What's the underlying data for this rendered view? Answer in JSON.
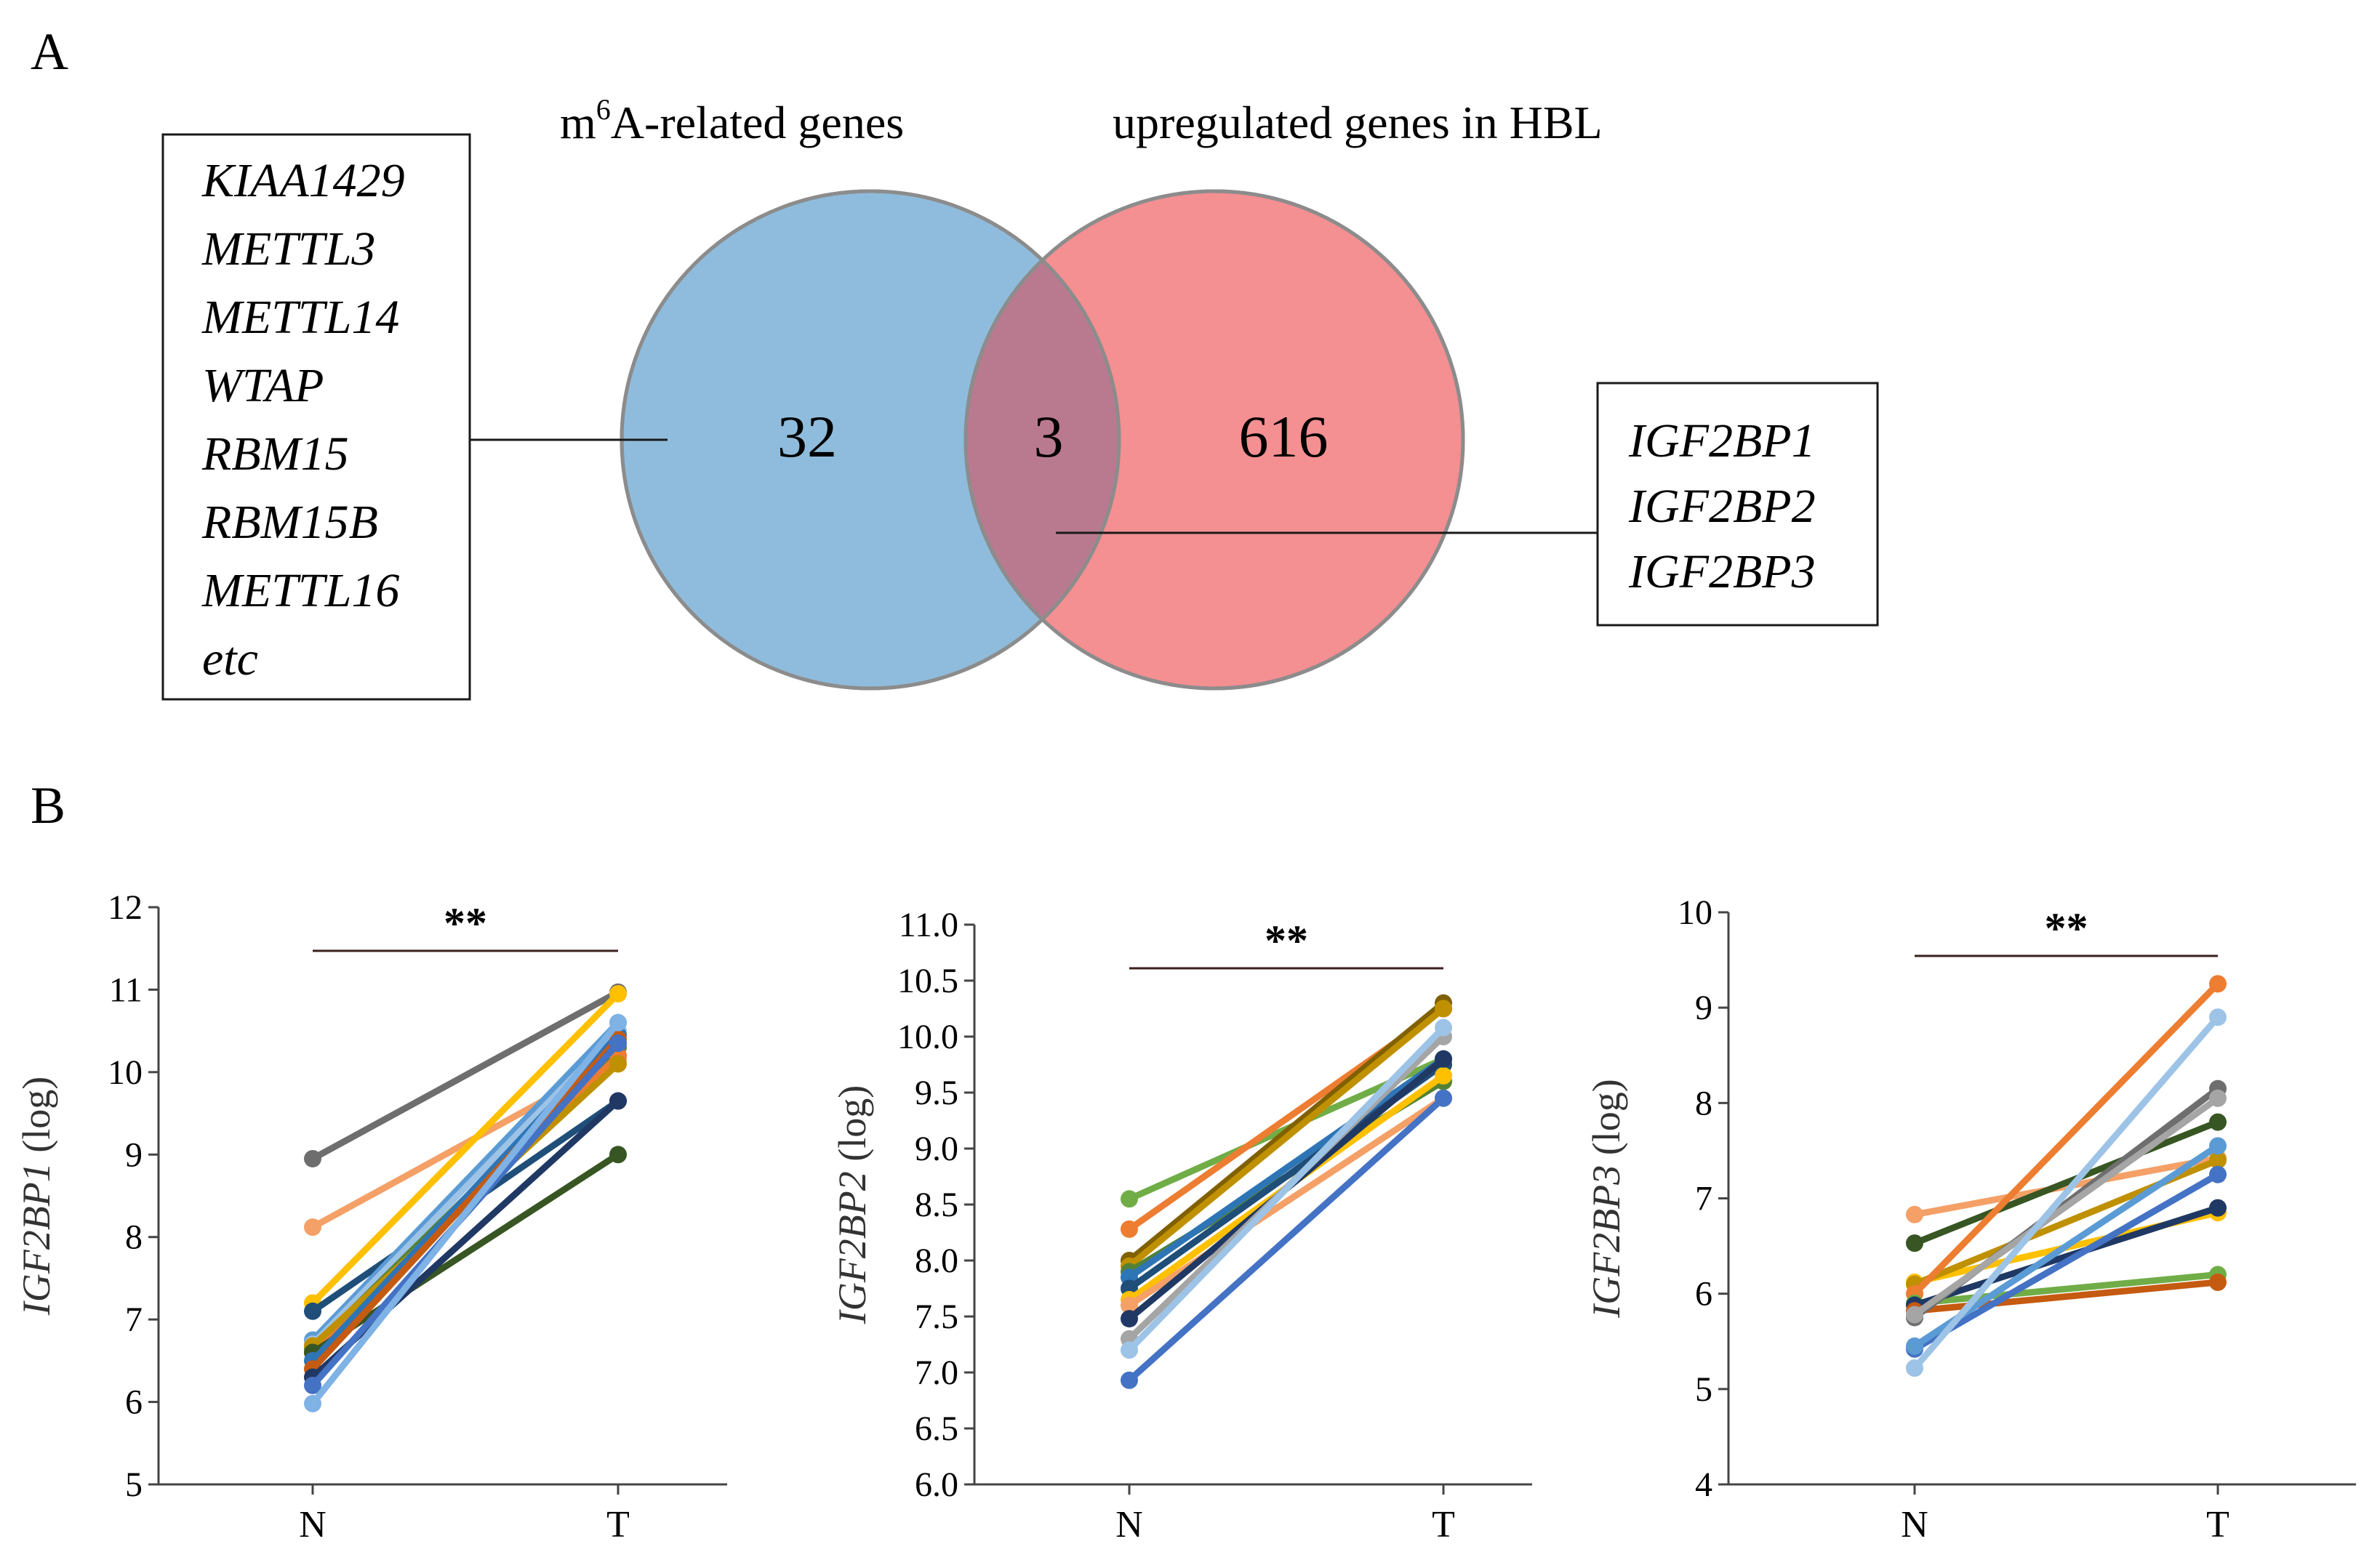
{
  "panels": {
    "a": "A",
    "b": "B"
  },
  "venn": {
    "left_title": "m",
    "left_title_sup": "6",
    "left_title_rest": "A-related genes",
    "right_title": "upregulated genes in HBL",
    "left_only": "32",
    "overlap": "3",
    "right_only": "616",
    "colors": {
      "left": "#8fbcdc",
      "right": "#f48f92"
    },
    "left_genes": [
      "KIAA1429",
      "METTL3",
      "METTL14",
      "WTAP",
      "RBM15",
      "RBM15B",
      "METTL16",
      "etc"
    ],
    "overlap_genes": [
      "IGF2BP1",
      "IGF2BP2",
      "IGF2BP3"
    ]
  },
  "chart_data": [
    {
      "type": "line",
      "gene": "IGF2BP1",
      "ylabel_suffix": " (log)",
      "categories": [
        "N",
        "T"
      ],
      "ylim": [
        5,
        12
      ],
      "yticks": [
        "5",
        "6",
        "7",
        "8",
        "9",
        "10",
        "11",
        "12"
      ],
      "significance": "**",
      "series": [
        {
          "color": "#6e6e6e",
          "values": [
            8.95,
            10.97
          ]
        },
        {
          "color": "#f4a067",
          "values": [
            8.12,
            10.15
          ]
        },
        {
          "color": "#ffc000",
          "values": [
            7.2,
            10.95
          ]
        },
        {
          "color": "#1f4e79",
          "values": [
            7.1,
            9.65
          ]
        },
        {
          "color": "#5b9bd5",
          "values": [
            6.75,
            10.6
          ]
        },
        {
          "color": "#9dc3e6",
          "values": [
            6.7,
            10.5
          ]
        },
        {
          "color": "#548235",
          "values": [
            6.65,
            10.3
          ]
        },
        {
          "color": "#ed7d31",
          "values": [
            6.6,
            10.2
          ]
        },
        {
          "color": "#bf9000",
          "values": [
            6.68,
            10.1
          ]
        },
        {
          "color": "#375623",
          "values": [
            6.6,
            9.0
          ]
        },
        {
          "color": "#2e75b6",
          "values": [
            6.5,
            10.45
          ]
        },
        {
          "color": "#c55a11",
          "values": [
            6.4,
            10.4
          ]
        },
        {
          "color": "#203864",
          "values": [
            6.3,
            9.65
          ]
        },
        {
          "color": "#4472c4",
          "values": [
            6.2,
            10.35
          ]
        },
        {
          "color": "#7fb2e5",
          "values": [
            5.98,
            10.6
          ]
        }
      ]
    },
    {
      "type": "line",
      "gene": "IGF2BP2",
      "ylabel_suffix": " (log)",
      "categories": [
        "N",
        "T"
      ],
      "ylim": [
        6.0,
        11.0
      ],
      "yticks": [
        "6.0",
        "6.5",
        "7.0",
        "7.5",
        "8.0",
        "8.5",
        "9.0",
        "9.5",
        "10.0",
        "10.5",
        "11.0"
      ],
      "significance": "**",
      "series": [
        {
          "color": "#70ad47",
          "values": [
            8.55,
            9.8
          ]
        },
        {
          "color": "#ed7d31",
          "values": [
            8.28,
            10.25
          ]
        },
        {
          "color": "#806000",
          "values": [
            8.0,
            10.3
          ]
        },
        {
          "color": "#bf9000",
          "values": [
            7.95,
            10.25
          ]
        },
        {
          "color": "#548235",
          "values": [
            7.9,
            9.6
          ]
        },
        {
          "color": "#2e75b6",
          "values": [
            7.85,
            9.8
          ]
        },
        {
          "color": "#1f4e79",
          "values": [
            7.75,
            9.75
          ]
        },
        {
          "color": "#ffc000",
          "values": [
            7.65,
            9.65
          ]
        },
        {
          "color": "#f4a067",
          "values": [
            7.6,
            9.45
          ]
        },
        {
          "color": "#203864",
          "values": [
            7.48,
            9.8
          ]
        },
        {
          "color": "#a5a5a5",
          "values": [
            7.3,
            10.0
          ]
        },
        {
          "color": "#9dc3e6",
          "values": [
            7.2,
            10.08
          ]
        },
        {
          "color": "#4472c4",
          "values": [
            6.93,
            9.45
          ]
        }
      ]
    },
    {
      "type": "line",
      "gene": "IGF2BP3",
      "ylabel_suffix": " (log)",
      "categories": [
        "N",
        "T"
      ],
      "ylim": [
        4,
        10
      ],
      "yticks": [
        "4",
        "5",
        "6",
        "7",
        "8",
        "9",
        "10"
      ],
      "significance": "**",
      "series": [
        {
          "color": "#f4a067",
          "values": [
            6.83,
            7.42
          ]
        },
        {
          "color": "#375623",
          "values": [
            6.53,
            7.8
          ]
        },
        {
          "color": "#ffc000",
          "values": [
            6.12,
            6.85
          ]
        },
        {
          "color": "#bf9000",
          "values": [
            6.1,
            7.4
          ]
        },
        {
          "color": "#ed7d31",
          "values": [
            6.0,
            9.25
          ]
        },
        {
          "color": "#70ad47",
          "values": [
            5.9,
            6.2
          ]
        },
        {
          "color": "#203864",
          "values": [
            5.88,
            6.9
          ]
        },
        {
          "color": "#c55a11",
          "values": [
            5.82,
            6.12
          ]
        },
        {
          "color": "#6e6e6e",
          "values": [
            5.75,
            8.15
          ]
        },
        {
          "color": "#a5a5a5",
          "values": [
            5.78,
            8.05
          ]
        },
        {
          "color": "#4472c4",
          "values": [
            5.42,
            7.25
          ]
        },
        {
          "color": "#5b9bd5",
          "values": [
            5.45,
            7.55
          ]
        },
        {
          "color": "#9dc3e6",
          "values": [
            5.22,
            8.9
          ]
        }
      ]
    }
  ]
}
